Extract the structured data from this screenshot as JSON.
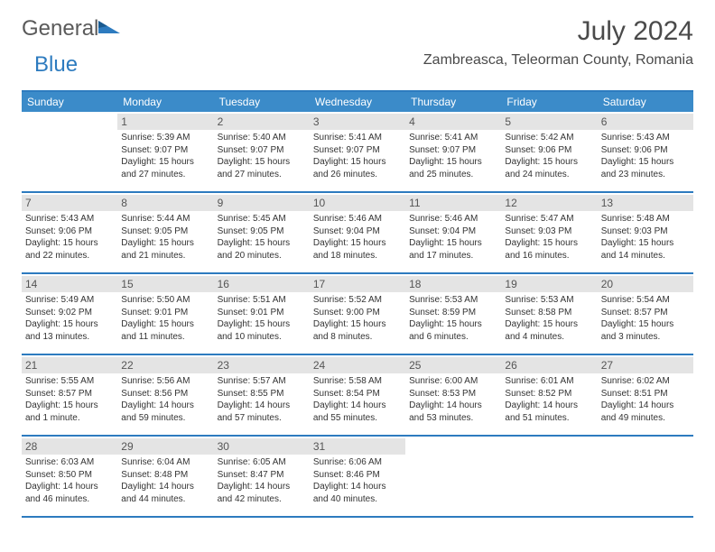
{
  "brand": {
    "part1": "General",
    "part2": "Blue",
    "icon_color": "#2d7bbf",
    "text_color": "#5a5a5a"
  },
  "title": "July 2024",
  "location": "Zambreasca, Teleorman County, Romania",
  "colors": {
    "header_bg": "#3b8bc9",
    "border": "#2d7bbf",
    "daynum_bg": "#e4e4e4",
    "text": "#333333"
  },
  "dow": [
    "Sunday",
    "Monday",
    "Tuesday",
    "Wednesday",
    "Thursday",
    "Friday",
    "Saturday"
  ],
  "weeks": [
    [
      {
        "n": "",
        "sr": "",
        "ss": "",
        "dl": ""
      },
      {
        "n": "1",
        "sr": "Sunrise: 5:39 AM",
        "ss": "Sunset: 9:07 PM",
        "dl": "Daylight: 15 hours and 27 minutes."
      },
      {
        "n": "2",
        "sr": "Sunrise: 5:40 AM",
        "ss": "Sunset: 9:07 PM",
        "dl": "Daylight: 15 hours and 27 minutes."
      },
      {
        "n": "3",
        "sr": "Sunrise: 5:41 AM",
        "ss": "Sunset: 9:07 PM",
        "dl": "Daylight: 15 hours and 26 minutes."
      },
      {
        "n": "4",
        "sr": "Sunrise: 5:41 AM",
        "ss": "Sunset: 9:07 PM",
        "dl": "Daylight: 15 hours and 25 minutes."
      },
      {
        "n": "5",
        "sr": "Sunrise: 5:42 AM",
        "ss": "Sunset: 9:06 PM",
        "dl": "Daylight: 15 hours and 24 minutes."
      },
      {
        "n": "6",
        "sr": "Sunrise: 5:43 AM",
        "ss": "Sunset: 9:06 PM",
        "dl": "Daylight: 15 hours and 23 minutes."
      }
    ],
    [
      {
        "n": "7",
        "sr": "Sunrise: 5:43 AM",
        "ss": "Sunset: 9:06 PM",
        "dl": "Daylight: 15 hours and 22 minutes."
      },
      {
        "n": "8",
        "sr": "Sunrise: 5:44 AM",
        "ss": "Sunset: 9:05 PM",
        "dl": "Daylight: 15 hours and 21 minutes."
      },
      {
        "n": "9",
        "sr": "Sunrise: 5:45 AM",
        "ss": "Sunset: 9:05 PM",
        "dl": "Daylight: 15 hours and 20 minutes."
      },
      {
        "n": "10",
        "sr": "Sunrise: 5:46 AM",
        "ss": "Sunset: 9:04 PM",
        "dl": "Daylight: 15 hours and 18 minutes."
      },
      {
        "n": "11",
        "sr": "Sunrise: 5:46 AM",
        "ss": "Sunset: 9:04 PM",
        "dl": "Daylight: 15 hours and 17 minutes."
      },
      {
        "n": "12",
        "sr": "Sunrise: 5:47 AM",
        "ss": "Sunset: 9:03 PM",
        "dl": "Daylight: 15 hours and 16 minutes."
      },
      {
        "n": "13",
        "sr": "Sunrise: 5:48 AM",
        "ss": "Sunset: 9:03 PM",
        "dl": "Daylight: 15 hours and 14 minutes."
      }
    ],
    [
      {
        "n": "14",
        "sr": "Sunrise: 5:49 AM",
        "ss": "Sunset: 9:02 PM",
        "dl": "Daylight: 15 hours and 13 minutes."
      },
      {
        "n": "15",
        "sr": "Sunrise: 5:50 AM",
        "ss": "Sunset: 9:01 PM",
        "dl": "Daylight: 15 hours and 11 minutes."
      },
      {
        "n": "16",
        "sr": "Sunrise: 5:51 AM",
        "ss": "Sunset: 9:01 PM",
        "dl": "Daylight: 15 hours and 10 minutes."
      },
      {
        "n": "17",
        "sr": "Sunrise: 5:52 AM",
        "ss": "Sunset: 9:00 PM",
        "dl": "Daylight: 15 hours and 8 minutes."
      },
      {
        "n": "18",
        "sr": "Sunrise: 5:53 AM",
        "ss": "Sunset: 8:59 PM",
        "dl": "Daylight: 15 hours and 6 minutes."
      },
      {
        "n": "19",
        "sr": "Sunrise: 5:53 AM",
        "ss": "Sunset: 8:58 PM",
        "dl": "Daylight: 15 hours and 4 minutes."
      },
      {
        "n": "20",
        "sr": "Sunrise: 5:54 AM",
        "ss": "Sunset: 8:57 PM",
        "dl": "Daylight: 15 hours and 3 minutes."
      }
    ],
    [
      {
        "n": "21",
        "sr": "Sunrise: 5:55 AM",
        "ss": "Sunset: 8:57 PM",
        "dl": "Daylight: 15 hours and 1 minute."
      },
      {
        "n": "22",
        "sr": "Sunrise: 5:56 AM",
        "ss": "Sunset: 8:56 PM",
        "dl": "Daylight: 14 hours and 59 minutes."
      },
      {
        "n": "23",
        "sr": "Sunrise: 5:57 AM",
        "ss": "Sunset: 8:55 PM",
        "dl": "Daylight: 14 hours and 57 minutes."
      },
      {
        "n": "24",
        "sr": "Sunrise: 5:58 AM",
        "ss": "Sunset: 8:54 PM",
        "dl": "Daylight: 14 hours and 55 minutes."
      },
      {
        "n": "25",
        "sr": "Sunrise: 6:00 AM",
        "ss": "Sunset: 8:53 PM",
        "dl": "Daylight: 14 hours and 53 minutes."
      },
      {
        "n": "26",
        "sr": "Sunrise: 6:01 AM",
        "ss": "Sunset: 8:52 PM",
        "dl": "Daylight: 14 hours and 51 minutes."
      },
      {
        "n": "27",
        "sr": "Sunrise: 6:02 AM",
        "ss": "Sunset: 8:51 PM",
        "dl": "Daylight: 14 hours and 49 minutes."
      }
    ],
    [
      {
        "n": "28",
        "sr": "Sunrise: 6:03 AM",
        "ss": "Sunset: 8:50 PM",
        "dl": "Daylight: 14 hours and 46 minutes."
      },
      {
        "n": "29",
        "sr": "Sunrise: 6:04 AM",
        "ss": "Sunset: 8:48 PM",
        "dl": "Daylight: 14 hours and 44 minutes."
      },
      {
        "n": "30",
        "sr": "Sunrise: 6:05 AM",
        "ss": "Sunset: 8:47 PM",
        "dl": "Daylight: 14 hours and 42 minutes."
      },
      {
        "n": "31",
        "sr": "Sunrise: 6:06 AM",
        "ss": "Sunset: 8:46 PM",
        "dl": "Daylight: 14 hours and 40 minutes."
      },
      {
        "n": "",
        "sr": "",
        "ss": "",
        "dl": ""
      },
      {
        "n": "",
        "sr": "",
        "ss": "",
        "dl": ""
      },
      {
        "n": "",
        "sr": "",
        "ss": "",
        "dl": ""
      }
    ]
  ]
}
